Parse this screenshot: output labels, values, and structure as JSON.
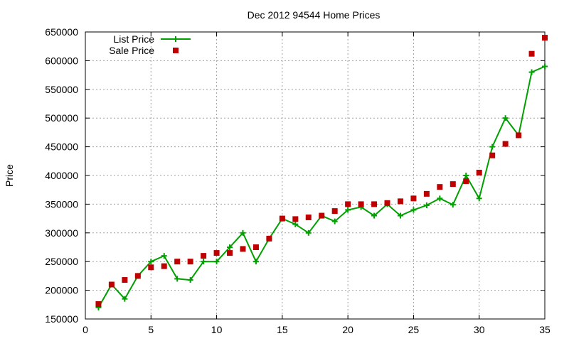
{
  "chart_data": {
    "type": "line",
    "title": "Dec 2012 94544 Home Prices",
    "xlabel": "",
    "ylabel": "Price",
    "xlim": [
      0,
      35
    ],
    "ylim": [
      150000,
      650000
    ],
    "xticks": [
      0,
      5,
      10,
      15,
      20,
      25,
      30,
      35
    ],
    "yticks": [
      150000,
      200000,
      250000,
      300000,
      350000,
      400000,
      450000,
      500000,
      550000,
      600000,
      650000
    ],
    "grid": true,
    "legend_position": "top-left",
    "series": [
      {
        "name": "List Price",
        "style": "line-with-plus-markers",
        "color": "#00a000",
        "x": [
          1,
          2,
          3,
          4,
          5,
          6,
          7,
          8,
          9,
          10,
          11,
          12,
          13,
          14,
          15,
          16,
          17,
          18,
          19,
          20,
          21,
          22,
          23,
          24,
          25,
          26,
          27,
          28,
          29,
          30,
          31,
          32,
          33,
          34,
          35
        ],
        "values": [
          170000,
          210000,
          185000,
          225000,
          250000,
          260000,
          220000,
          218000,
          250000,
          250000,
          275000,
          300000,
          250000,
          290000,
          325000,
          315000,
          300000,
          330000,
          320000,
          340000,
          345000,
          330000,
          350000,
          330000,
          340000,
          348000,
          360000,
          349000,
          400000,
          360000,
          450000,
          500000,
          470000,
          580000,
          590000
        ]
      },
      {
        "name": "Sale Price",
        "style": "square-markers",
        "color": "#c00000",
        "x": [
          1,
          2,
          3,
          4,
          5,
          6,
          7,
          8,
          9,
          10,
          11,
          12,
          13,
          14,
          15,
          16,
          17,
          18,
          19,
          20,
          21,
          22,
          23,
          24,
          25,
          26,
          27,
          28,
          29,
          30,
          31,
          32,
          33,
          34,
          35
        ],
        "values": [
          176000,
          210000,
          218000,
          225000,
          240000,
          242000,
          250000,
          250000,
          260000,
          265000,
          265000,
          272000,
          275000,
          290000,
          325000,
          324000,
          327000,
          330000,
          338000,
          350000,
          350000,
          350000,
          352000,
          355000,
          360000,
          368000,
          380000,
          385000,
          390000,
          405000,
          435000,
          455000,
          470000,
          612000,
          640000
        ]
      }
    ]
  }
}
